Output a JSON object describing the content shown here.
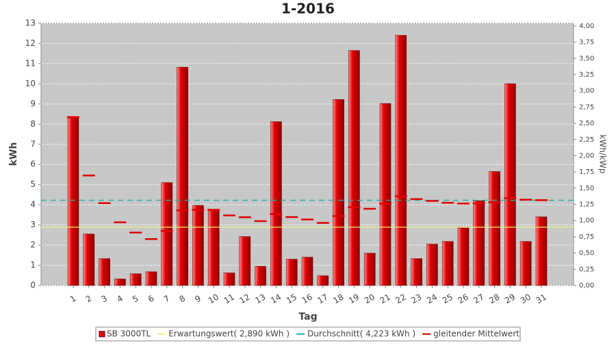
{
  "chart_data": {
    "type": "bar",
    "title": "1-2016",
    "x_label": "Tag",
    "y_label": "kWh",
    "y2_label": "kWh/kWp",
    "categories": [
      "1",
      "2",
      "3",
      "4",
      "5",
      "6",
      "7",
      "8",
      "9",
      "10",
      "11",
      "12",
      "13",
      "14",
      "15",
      "16",
      "17",
      "18",
      "19",
      "20",
      "21",
      "22",
      "23",
      "24",
      "25",
      "26",
      "27",
      "28",
      "29",
      "30",
      "31"
    ],
    "series": [
      {
        "name": "SB 3000TL",
        "color": "#e00000",
        "values": [
          8.35,
          2.55,
          1.33,
          0.32,
          0.58,
          0.68,
          5.1,
          10.82,
          3.97,
          3.77,
          0.62,
          2.42,
          0.95,
          8.12,
          1.3,
          1.4,
          0.48,
          9.22,
          11.65,
          1.6,
          9.02,
          12.4,
          1.33,
          2.05,
          2.18,
          2.85,
          4.2,
          5.65,
          10.0,
          2.18,
          3.4
        ]
      },
      {
        "name": "gleitender Mittelwert",
        "color": "#e00000",
        "values": [
          8.35,
          5.45,
          4.08,
          3.13,
          2.62,
          2.3,
          2.7,
          3.72,
          3.75,
          3.75,
          3.47,
          3.38,
          3.19,
          3.54,
          3.39,
          3.27,
          3.1,
          3.44,
          3.88,
          3.8,
          4.05,
          4.42,
          4.28,
          4.19,
          4.1,
          4.06,
          4.07,
          4.13,
          4.33,
          4.25,
          4.23
        ]
      }
    ],
    "reference_lines": [
      {
        "name": "Erwartungswert( 2,890 kWh )",
        "color": "#f0f080",
        "value": 2.89
      },
      {
        "name": "Durchschnitt( 4,223 kWh )",
        "color": "#20b0b0",
        "value": 4.223
      }
    ],
    "ylim": [
      0,
      13
    ],
    "yticks": [
      0,
      1,
      2,
      3,
      4,
      5,
      6,
      7,
      8,
      9,
      10,
      11,
      12,
      13
    ],
    "y2lim": [
      0,
      4.042
    ],
    "y2ticks": [
      {
        "value": 0,
        "label": "0,00"
      },
      {
        "value": 0.25,
        "label": "0,25"
      },
      {
        "value": 0.5,
        "label": "0,50"
      },
      {
        "value": 0.75,
        "label": "0,75"
      },
      {
        "value": 1,
        "label": "1,00"
      },
      {
        "value": 1.25,
        "label": "1,25"
      },
      {
        "value": 1.5,
        "label": "1,50"
      },
      {
        "value": 1.75,
        "label": "1,75"
      },
      {
        "value": 2,
        "label": "2,00"
      },
      {
        "value": 2.25,
        "label": "2,25"
      },
      {
        "value": 2.5,
        "label": "2,50"
      },
      {
        "value": 2.75,
        "label": "2,75"
      },
      {
        "value": 3,
        "label": "3,00"
      },
      {
        "value": 3.25,
        "label": "3,25"
      },
      {
        "value": 3.5,
        "label": "3,50"
      },
      {
        "value": 3.75,
        "label": "3,75"
      },
      {
        "value": 4,
        "label": "4,00"
      }
    ],
    "grid": true
  }
}
